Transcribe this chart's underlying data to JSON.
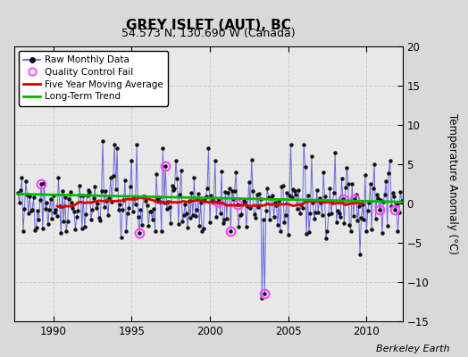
{
  "title": "GREY ISLET (AUT), BC",
  "subtitle": "54.573 N, 130.690 W (Canada)",
  "ylabel": "Temperature Anomaly (°C)",
  "credit": "Berkeley Earth",
  "xlim": [
    1987.5,
    2012.3
  ],
  "ylim": [
    -15,
    20
  ],
  "yticks": [
    -15,
    -10,
    -5,
    0,
    5,
    10,
    15,
    20
  ],
  "xticks": [
    1990,
    1995,
    2000,
    2005,
    2010
  ],
  "background_color": "#d9d9d9",
  "plot_bg_color": "#e8e8e8",
  "raw_line_color": "#5555dd",
  "raw_marker_color": "#111111",
  "qc_fail_color": "#ff44ff",
  "moving_avg_color": "#dd0000",
  "trend_color": "#00bb00",
  "seed": 42
}
